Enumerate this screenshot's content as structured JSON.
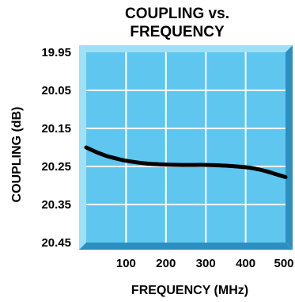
{
  "chart_data": {
    "type": "line",
    "title": [
      "COUPLING vs.",
      "FREQUENCY"
    ],
    "xlabel": "FREQUENCY (MHz)",
    "ylabel": "COUPLING (dB)",
    "x_ticks": [
      "100",
      "200",
      "300",
      "400",
      "500"
    ],
    "y_ticks": [
      "19.95",
      "20.05",
      "20.15",
      "20.25",
      "20.35",
      "20.45"
    ],
    "xlim": [
      0,
      500
    ],
    "ylim": [
      19.95,
      20.45
    ],
    "y_inverted": true,
    "grid": true,
    "series": [
      {
        "x": [
          0,
          25,
          50,
          75,
          100,
          150,
          200,
          250,
          300,
          350,
          400,
          425,
          450,
          475,
          500
        ],
        "y": [
          20.2,
          20.212,
          20.222,
          20.229,
          20.235,
          20.242,
          20.245,
          20.246,
          20.246,
          20.248,
          20.252,
          20.256,
          20.262,
          20.27,
          20.278
        ]
      }
    ],
    "colors": {
      "plot_fill": "#5fc6ef",
      "grid_line": "#ffffff",
      "frame_face": "#9fe0f7",
      "frame_shadow": "#2b8fc0",
      "curve": "#000000"
    }
  }
}
